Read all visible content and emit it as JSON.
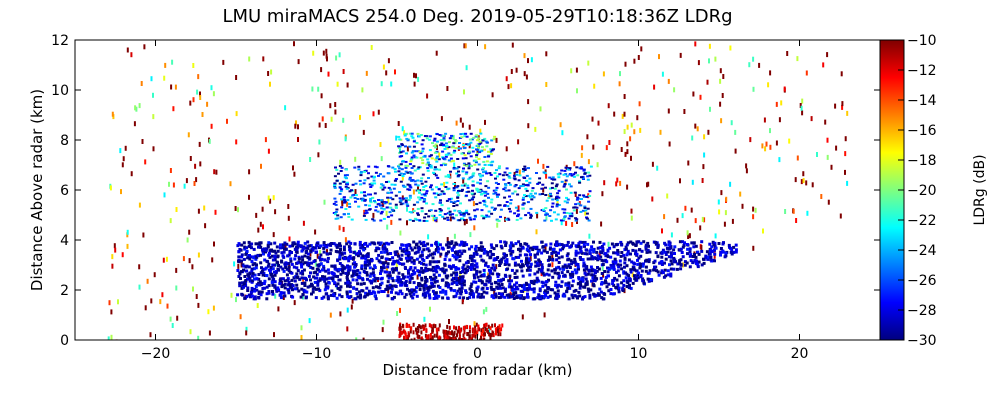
{
  "chart_data": {
    "type": "heatmap",
    "title": "LMU miraMACS 254.0 Deg. 2019-05-29T10:18:36Z  LDRg",
    "xlabel": "Distance from radar (km)",
    "ylabel": "Distance Above radar  (km)",
    "xlim": [
      -25,
      25
    ],
    "ylim": [
      0,
      12
    ],
    "x_ticks": [
      "−20",
      "−10",
      "0",
      "10",
      "20"
    ],
    "x_tick_values": [
      -20,
      -10,
      0,
      10,
      20
    ],
    "y_ticks": [
      "0",
      "2",
      "4",
      "6",
      "8",
      "10",
      "12"
    ],
    "y_tick_values": [
      0,
      2,
      4,
      6,
      8,
      10,
      12
    ],
    "colorbar": {
      "label": "LDRg (dB)",
      "range": [
        -30,
        -10
      ],
      "ticks": [
        "−30",
        "−28",
        "−26",
        "−24",
        "−22",
        "−20",
        "−18",
        "−16",
        "−14",
        "−12",
        "−10"
      ],
      "tick_values": [
        -30,
        -28,
        -26,
        -24,
        -22,
        -20,
        -18,
        -16,
        -14,
        -12,
        -10
      ],
      "colormap": [
        "#00007f",
        "#0000ff",
        "#007fff",
        "#00ffff",
        "#7fff7f",
        "#ffff00",
        "#ff7f00",
        "#ff0000",
        "#7f0000"
      ]
    },
    "scan": {
      "azimuth_deg": 254.0,
      "lower_boundary_slope_km_per_km": 0.22
    },
    "regions": [
      {
        "name": "low-LDR stratiform layer",
        "x_range": [
          -15,
          16
        ],
        "y_range": [
          1.7,
          4.0
        ],
        "ldr_db": -29
      },
      {
        "name": "mid-level cloud",
        "x_range": [
          -9,
          7
        ],
        "y_range": [
          4.8,
          7.0
        ],
        "ldr_db": -26
      },
      {
        "name": "upper cloud cap",
        "x_range": [
          -5,
          1
        ],
        "y_range": [
          7.0,
          8.3
        ],
        "ldr_db": -24
      },
      {
        "name": "near-radar clutter",
        "x_range": [
          -5,
          1.5
        ],
        "y_range": [
          0,
          0.7
        ],
        "ldr_db": -11
      },
      {
        "name": "sparse noise",
        "x_range": [
          -23,
          23
        ],
        "y_range": [
          0,
          12
        ],
        "ldr_db": -12
      }
    ],
    "grid": false
  }
}
